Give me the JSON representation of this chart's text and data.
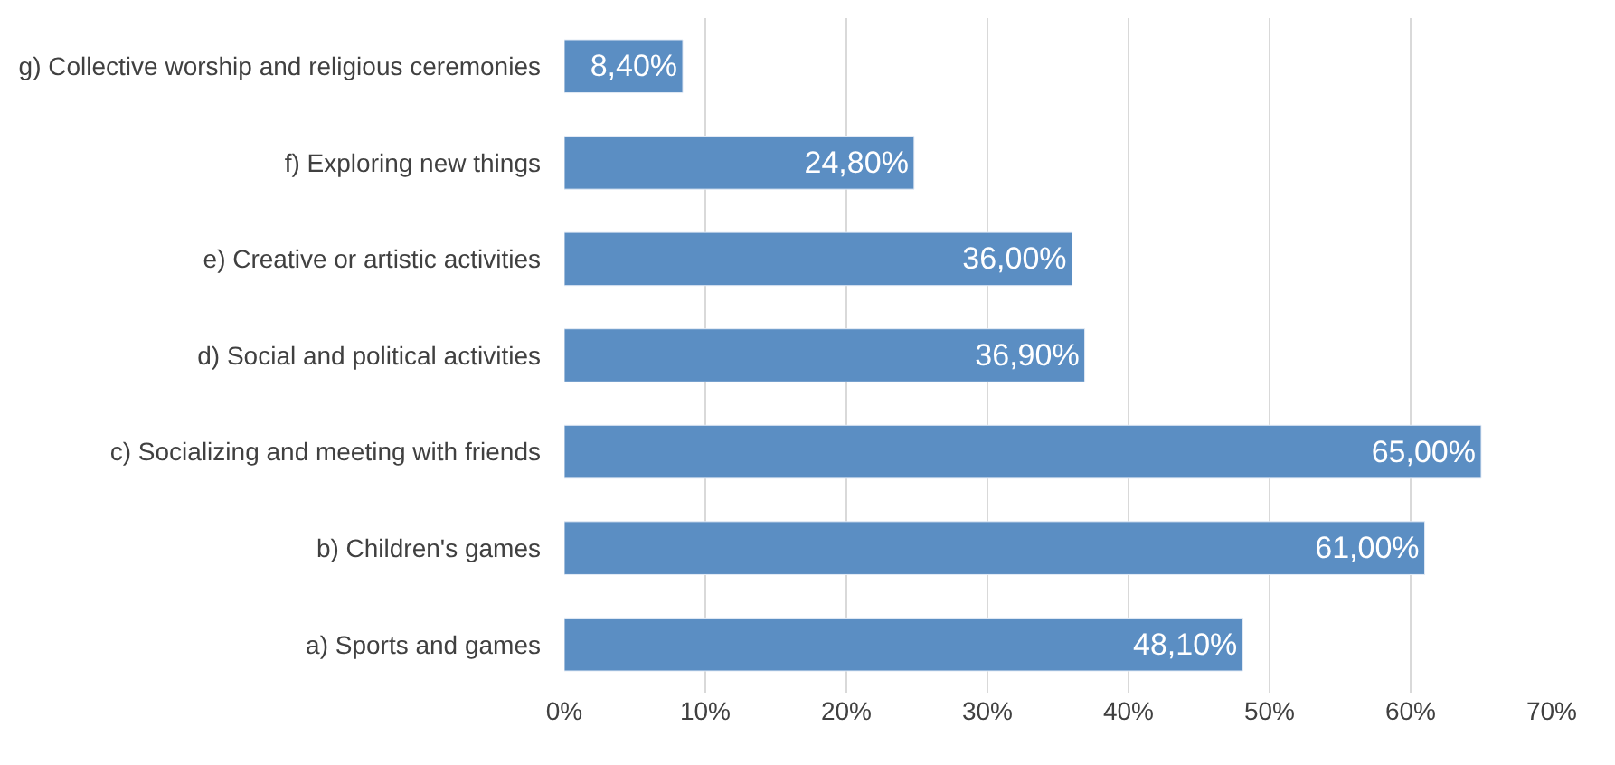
{
  "chart_data": {
    "type": "bar",
    "orientation": "horizontal",
    "categories": [
      "g) Collective worship and religious ceremonies",
      "f) Exploring new things",
      "e) Creative or artistic activities",
      "d) Social and political activities",
      "c) Socializing and meeting with friends",
      "b) Children's games",
      "a) Sports and games"
    ],
    "values": [
      8.4,
      24.8,
      36.0,
      36.9,
      65.0,
      61.0,
      48.1
    ],
    "value_labels": [
      "8,40%",
      "24,80%",
      "36,00%",
      "36,90%",
      "65,00%",
      "61,00%",
      "48,10%"
    ],
    "color": "#5b8ec3",
    "xlim": [
      0,
      70
    ],
    "xticks": [
      {
        "value": 0,
        "label": "0%"
      },
      {
        "value": 10,
        "label": "10%"
      },
      {
        "value": 20,
        "label": "20%"
      },
      {
        "value": 30,
        "label": "30%"
      },
      {
        "value": 40,
        "label": "40%"
      },
      {
        "value": 50,
        "label": "50%"
      },
      {
        "value": 60,
        "label": "60%"
      },
      {
        "value": 70,
        "label": "70%"
      }
    ],
    "grid": "x",
    "legend": false
  }
}
